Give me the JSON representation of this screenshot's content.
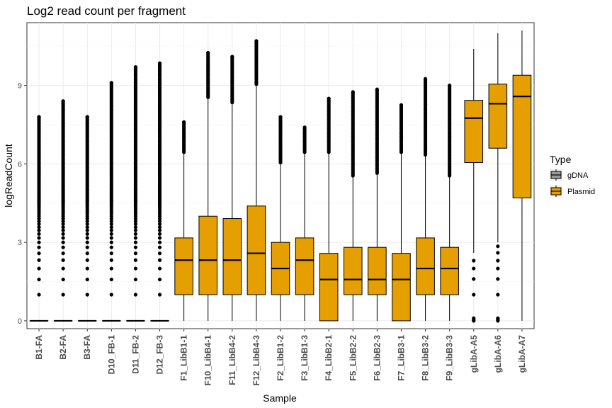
{
  "chart_data": {
    "type": "boxplot",
    "title": "Log2 read count per fragment",
    "xlabel": "Sample",
    "ylabel": "logReadCount",
    "ylim": [
      -0.3,
      11.4
    ],
    "yticks": [
      0,
      3,
      6,
      9
    ],
    "grid": true,
    "legend": {
      "title": "Type",
      "position": "right",
      "items": [
        {
          "label": "gDNA",
          "color": "#999999"
        },
        {
          "label": "Plasmid",
          "color": "#E69F00"
        }
      ]
    },
    "boxes": [
      {
        "category": "B1-FA",
        "type": "gDNA",
        "min": 0,
        "q1": 0,
        "median": 0,
        "q3": 0,
        "max": 0,
        "outliers_range": [
          1.0,
          7.8
        ]
      },
      {
        "category": "B2-FA",
        "type": "gDNA",
        "min": 0,
        "q1": 0,
        "median": 0,
        "q3": 0,
        "max": 0,
        "outliers_range": [
          1.0,
          8.4
        ]
      },
      {
        "category": "B3-FA",
        "type": "gDNA",
        "min": 0,
        "q1": 0,
        "median": 0,
        "q3": 0,
        "max": 0,
        "outliers_range": [
          1.0,
          7.8
        ]
      },
      {
        "category": "D10_FB-1",
        "type": "gDNA",
        "min": 0,
        "q1": 0,
        "median": 0,
        "q3": 0,
        "max": 0,
        "outliers_range": [
          1.0,
          9.1
        ]
      },
      {
        "category": "D11_FB-2",
        "type": "gDNA",
        "min": 0,
        "q1": 0,
        "median": 0,
        "q3": 0,
        "max": 0,
        "outliers_range": [
          1.0,
          9.7
        ]
      },
      {
        "category": "D12_FB-3",
        "type": "gDNA",
        "min": 0,
        "q1": 0,
        "median": 0,
        "q3": 0,
        "max": 0,
        "outliers_range": [
          1.0,
          9.85
        ]
      },
      {
        "category": "F1_LibB1-1",
        "type": "Plasmid",
        "min": 0,
        "q1": 1.0,
        "median": 2.32,
        "q3": 3.17,
        "max": 6.4,
        "outliers_range": [
          6.45,
          7.6
        ]
      },
      {
        "category": "F10_LibB4-1",
        "type": "Plasmid",
        "min": 0,
        "q1": 1.0,
        "median": 2.32,
        "q3": 4.0,
        "max": 8.5,
        "outliers_range": [
          8.55,
          10.25
        ]
      },
      {
        "category": "F11_LibB4-2",
        "type": "Plasmid",
        "min": 0,
        "q1": 1.0,
        "median": 2.32,
        "q3": 3.91,
        "max": 8.3,
        "outliers_range": [
          8.35,
          10.1
        ]
      },
      {
        "category": "F12_LibB4-3",
        "type": "Plasmid",
        "min": 0,
        "q1": 1.0,
        "median": 2.58,
        "q3": 4.39,
        "max": 9.0,
        "outliers_range": [
          9.05,
          10.7
        ]
      },
      {
        "category": "F2_LibB1-2",
        "type": "Plasmid",
        "min": 0,
        "q1": 1.0,
        "median": 2.0,
        "q3": 3.0,
        "max": 6.0,
        "outliers_range": [
          6.05,
          7.8
        ]
      },
      {
        "category": "F3_LibB1-3",
        "type": "Plasmid",
        "min": 0,
        "q1": 1.0,
        "median": 2.32,
        "q3": 3.17,
        "max": 6.4,
        "outliers_range": [
          6.45,
          7.4
        ]
      },
      {
        "category": "F4_LibB2-1",
        "type": "Plasmid",
        "min": 0,
        "q1": 0,
        "median": 1.58,
        "q3": 2.58,
        "max": 6.4,
        "outliers_range": [
          6.45,
          8.5
        ]
      },
      {
        "category": "F5_LibB2-2",
        "type": "Plasmid",
        "min": 0,
        "q1": 1.0,
        "median": 1.58,
        "q3": 2.81,
        "max": 5.5,
        "outliers_range": [
          5.55,
          8.75
        ]
      },
      {
        "category": "F6_LibB2-3",
        "type": "Plasmid",
        "min": 0,
        "q1": 1.0,
        "median": 1.58,
        "q3": 2.81,
        "max": 5.6,
        "outliers_range": [
          5.65,
          8.85
        ]
      },
      {
        "category": "F7_LibB3-1",
        "type": "Plasmid",
        "min": 0,
        "q1": 0,
        "median": 1.58,
        "q3": 2.58,
        "max": 6.4,
        "outliers_range": [
          6.45,
          8.25
        ]
      },
      {
        "category": "F8_LibB3-2",
        "type": "Plasmid",
        "min": 0,
        "q1": 1.0,
        "median": 2.0,
        "q3": 3.17,
        "max": 6.3,
        "outliers_range": [
          6.35,
          9.25
        ]
      },
      {
        "category": "F9_LibB3-3",
        "type": "Plasmid",
        "min": 0,
        "q1": 1.0,
        "median": 2.0,
        "q3": 2.81,
        "max": 5.5,
        "outliers_range": [
          5.55,
          9.0
        ]
      },
      {
        "category": "gLibA-A5",
        "type": "Plasmid",
        "min": 2.6,
        "q1": 6.05,
        "median": 7.75,
        "q3": 8.43,
        "max": 10.4,
        "outliers": [
          0,
          0.05,
          0.1,
          1.0,
          1.6,
          2.0,
          2.3
        ]
      },
      {
        "category": "gLibA-A6",
        "type": "Plasmid",
        "min": 3.0,
        "q1": 6.6,
        "median": 8.3,
        "q3": 9.05,
        "max": 11.0,
        "outliers": [
          0,
          0.05,
          0.1,
          1.0,
          1.6,
          2.0,
          2.3,
          2.6,
          2.85
        ]
      },
      {
        "category": "gLibA-A7",
        "type": "Plasmid",
        "min": 0,
        "q1": 4.7,
        "median": 8.58,
        "q3": 9.39,
        "max": 11.1,
        "outliers": []
      }
    ]
  }
}
